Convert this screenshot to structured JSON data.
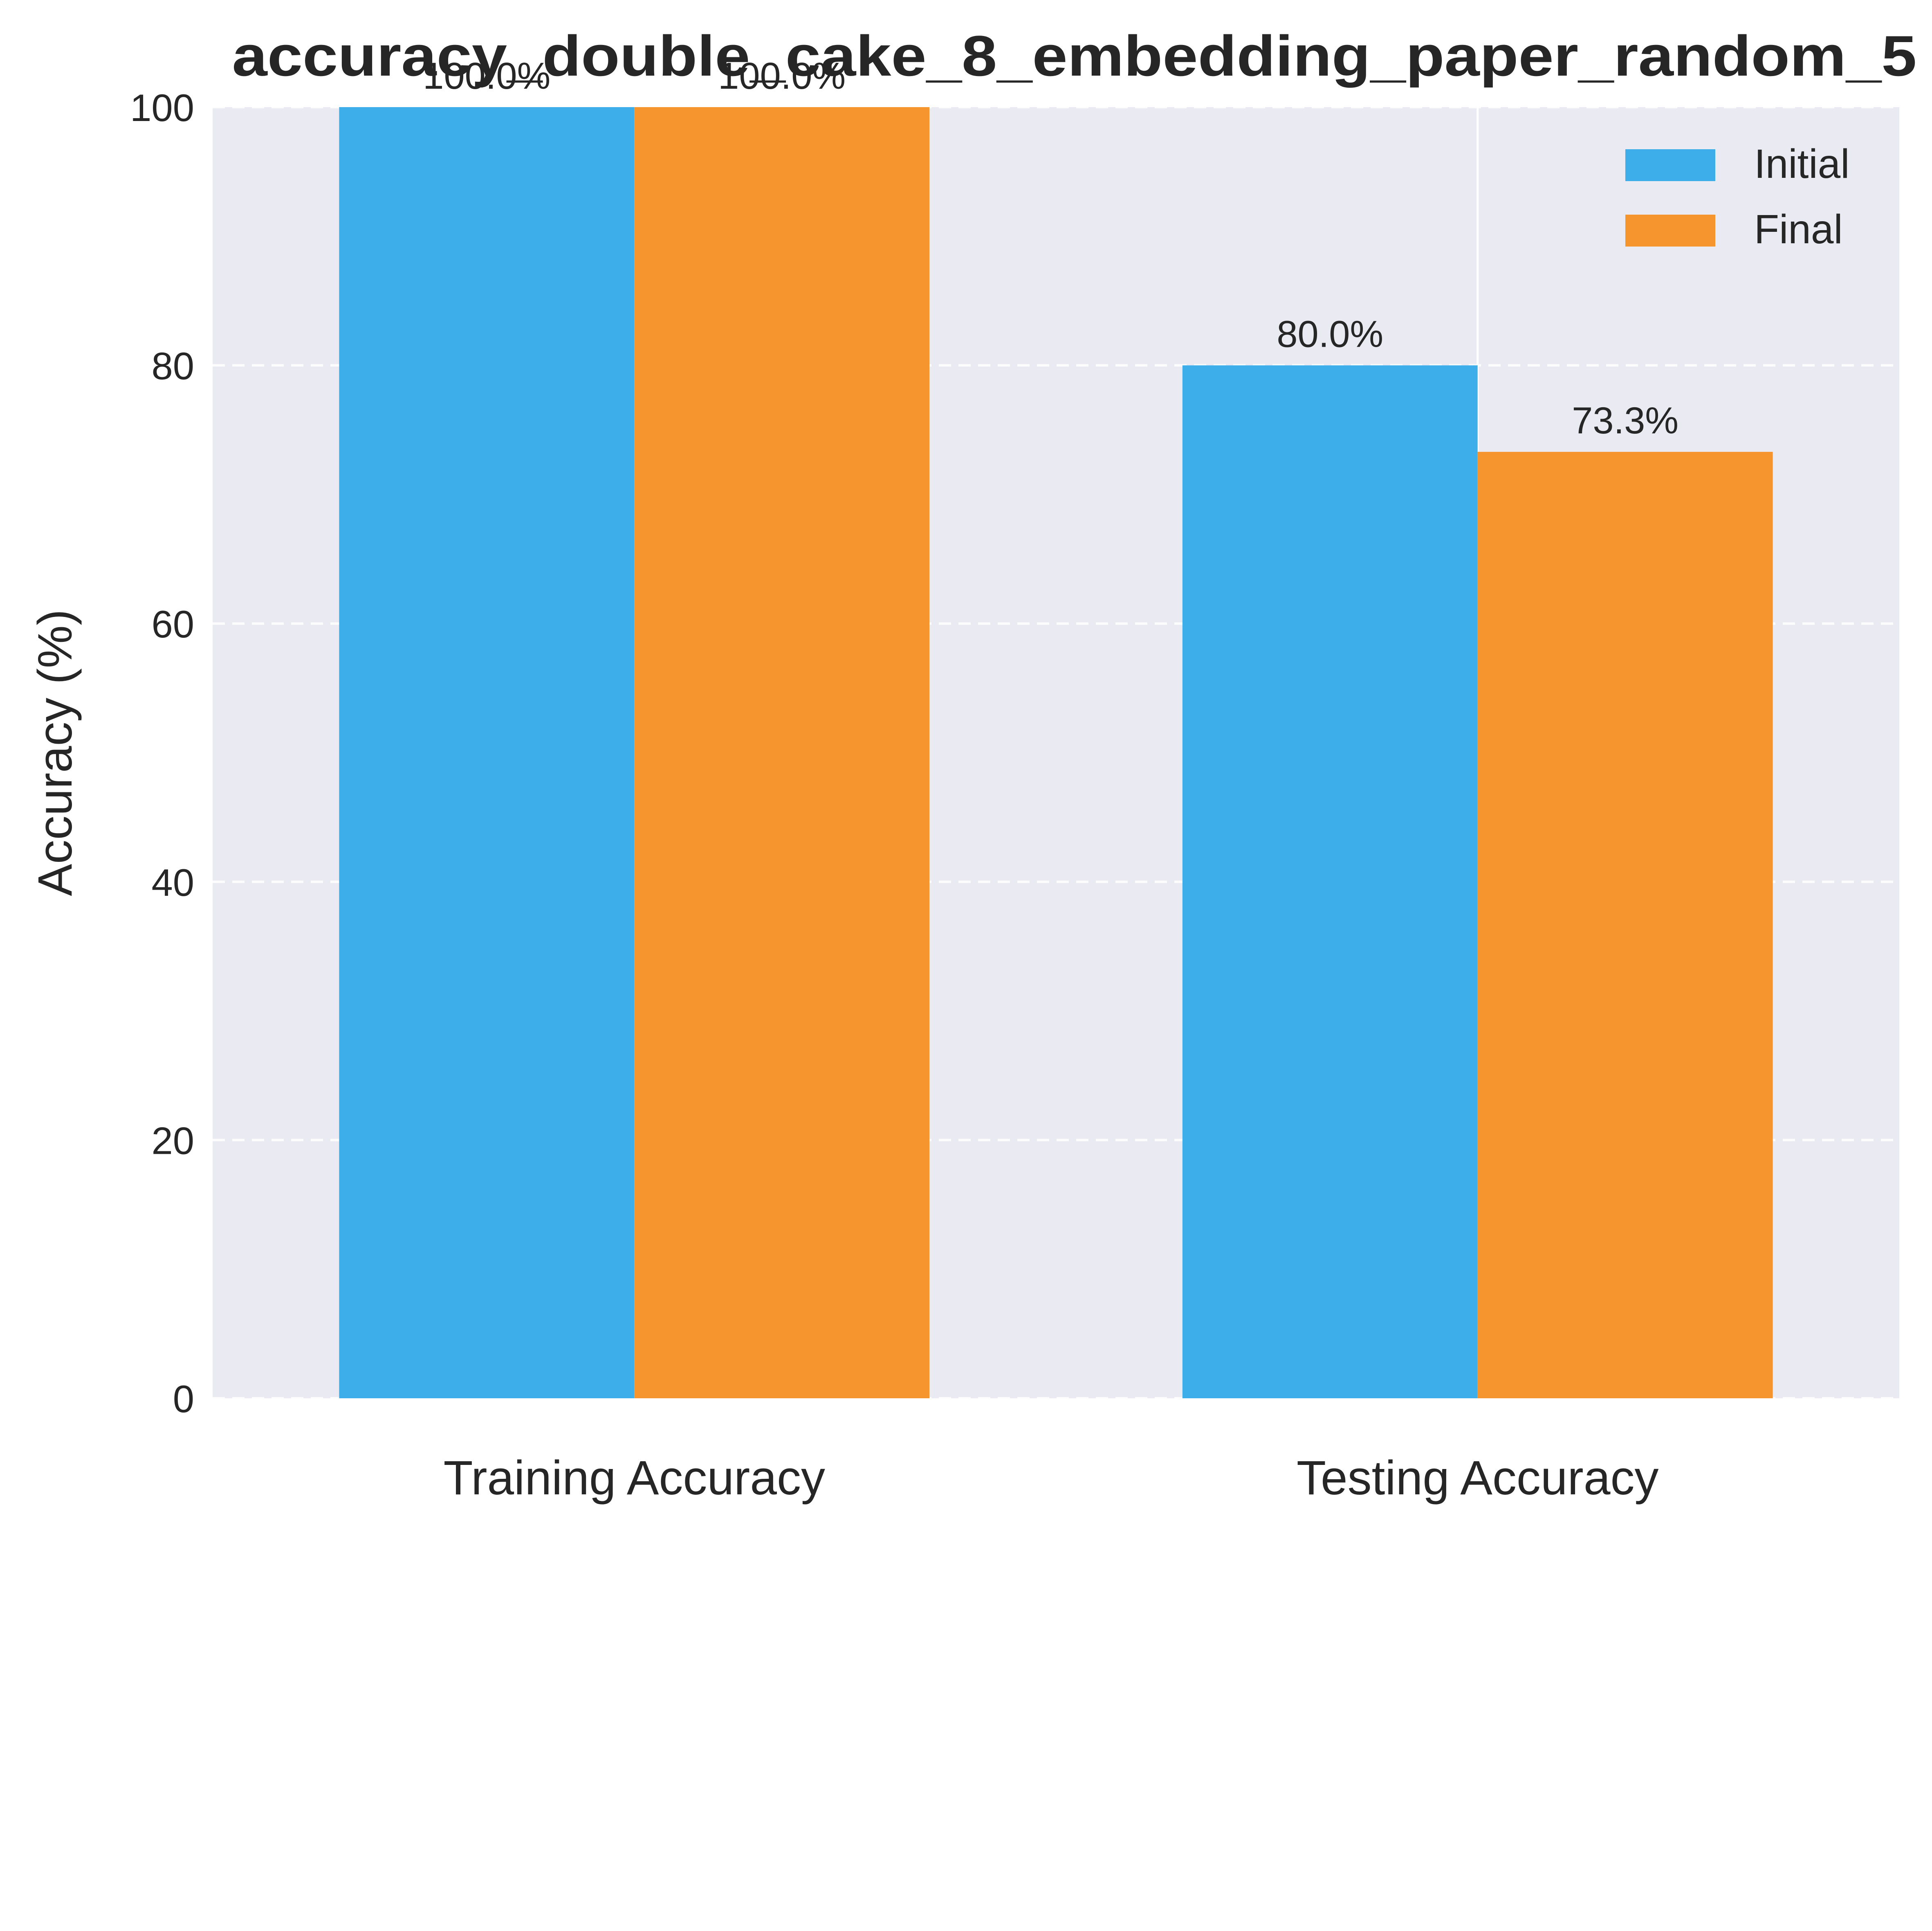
{
  "chart_data": {
    "type": "bar",
    "title": "accuracy_double_cake_8_embedding_paper_random_5",
    "xlabel": "",
    "ylabel": "Accuracy (%)",
    "categories": [
      "Training Accuracy",
      "Testing Accuracy"
    ],
    "series": [
      {
        "name": "Initial",
        "values": [
          100.0,
          80.0
        ],
        "labels": [
          "100.0%",
          "80.0%"
        ],
        "color": "#3daeea"
      },
      {
        "name": "Final",
        "values": [
          100.0,
          73.3
        ],
        "labels": [
          "100.0%",
          "73.3%"
        ],
        "color": "#f6942e"
      }
    ],
    "ylim": [
      0,
      100
    ],
    "yticks": [
      0,
      20,
      40,
      60,
      80,
      100
    ],
    "grid": true,
    "legend_position": "top-right",
    "background_color": "#eaeaf2",
    "grid_color": "#ffffff"
  }
}
